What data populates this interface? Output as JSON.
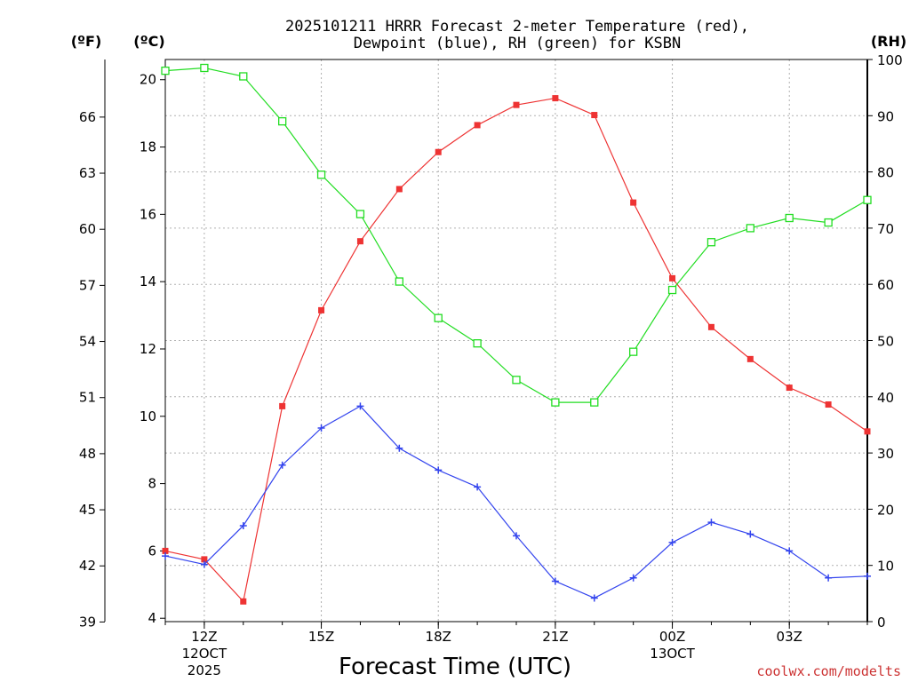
{
  "chart_data": {
    "type": "line",
    "title_lines": [
      "2025101211 HRRR Forecast 2-meter Temperature (red),",
      "Dewpoint (blue), RH (green) for KSBN"
    ],
    "units": {
      "fahrenheit": "(ºF)",
      "celsius": "(ºC)",
      "rh": "(RH)"
    },
    "celsius_axis": {
      "range": [
        3.9,
        20.6
      ],
      "ticks": [
        4,
        6,
        8,
        10,
        12,
        14,
        16,
        18,
        20
      ]
    },
    "fahrenheit_axis": {
      "ticks": [
        39,
        42,
        45,
        48,
        51,
        54,
        57,
        60,
        63,
        66
      ]
    },
    "rh_axis": {
      "range": [
        0,
        100
      ],
      "ticks": [
        0,
        10,
        20,
        30,
        40,
        50,
        60,
        70,
        80,
        90,
        100
      ]
    },
    "x": {
      "range": [
        11,
        29
      ],
      "hours": [
        11,
        12,
        13,
        14,
        15,
        16,
        17,
        18,
        19,
        20,
        21,
        22,
        23,
        24,
        25,
        26,
        27,
        28,
        29
      ]
    },
    "x_ticks": [
      {
        "h": 12,
        "label": "12Z",
        "sub1": "12OCT",
        "sub2": "2025"
      },
      {
        "h": 15,
        "label": "15Z"
      },
      {
        "h": 18,
        "label": "18Z"
      },
      {
        "h": 21,
        "label": "21Z"
      },
      {
        "h": 24,
        "label": "00Z",
        "sub1": "13OCT"
      },
      {
        "h": 27,
        "label": "03Z"
      }
    ],
    "xlabel": "Forecast Time (UTC)",
    "series": [
      {
        "name": "2-meter Temperature",
        "axis": "celsius",
        "color": "#ee3333",
        "marker": "filled-square",
        "values": [
          6.0,
          5.75,
          4.5,
          10.3,
          13.15,
          15.2,
          16.75,
          17.85,
          18.65,
          19.25,
          19.45,
          18.95,
          16.35,
          14.1,
          12.65,
          11.7,
          10.85,
          10.35,
          9.55
        ]
      },
      {
        "name": "Dewpoint",
        "axis": "celsius",
        "color": "#3344ee",
        "marker": "plus",
        "values": [
          5.85,
          5.6,
          6.75,
          8.55,
          9.65,
          10.3,
          9.05,
          8.4,
          7.9,
          6.45,
          5.1,
          4.6,
          5.2,
          6.25,
          6.85,
          6.5,
          6.0,
          5.2,
          5.25
        ]
      },
      {
        "name": "Relative Humidity",
        "axis": "rh",
        "color": "#22dd22",
        "marker": "open-square",
        "values": [
          98,
          98.5,
          97,
          89,
          79.5,
          72.5,
          60.5,
          54,
          49.5,
          43,
          39,
          39,
          48,
          59,
          67.5,
          70,
          71.8,
          71,
          75
        ]
      }
    ],
    "credit": "coolwx.com/modelts",
    "credit_color": "#cc3333"
  }
}
